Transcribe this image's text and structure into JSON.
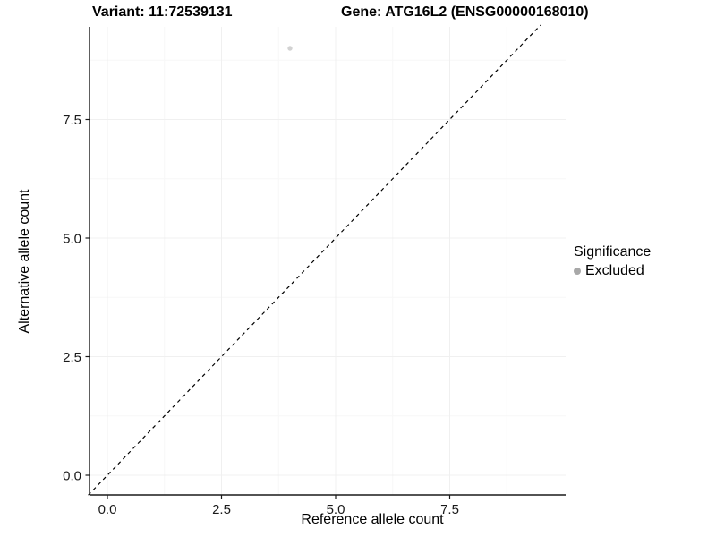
{
  "header": {
    "variant_title": "Variant: 11:72539131",
    "gene_title": "Gene: ATG16L2 (ENSG00000168010)"
  },
  "chart_data": {
    "type": "scatter",
    "xlabel": "Reference allele count",
    "ylabel": "Alternative allele count",
    "x_ticks": [
      0.0,
      2.5,
      5.0,
      7.5
    ],
    "y_ticks": [
      0.0,
      2.5,
      5.0,
      7.5
    ],
    "x_tick_labels": [
      "0.0",
      "2.5",
      "5.0",
      "7.5"
    ],
    "y_tick_labels": [
      "0.0",
      "2.5",
      "5.0",
      "7.5"
    ],
    "xlim": [
      -0.43,
      10.04
    ],
    "ylim": [
      -0.42,
      9.49
    ],
    "grid": {
      "major": true,
      "minor": true
    },
    "points": [
      {
        "x": 4,
        "y": 9,
        "series": "Excluded"
      }
    ],
    "reference_line": {
      "style": "dashed",
      "slope": 1,
      "intercept": 0
    },
    "legend": {
      "position": "right",
      "title": "Significance",
      "items": [
        {
          "label": "Excluded",
          "color": "#a8a8a8"
        }
      ]
    },
    "colors": {
      "point": "#d2d2d2",
      "axis_line": "#1a1a1a",
      "tick_text": "#1a1a1a",
      "grid_major": "#f0f0f0",
      "grid_minor": "#f7f7f7",
      "reference_line": "#000000",
      "background": "#ffffff"
    }
  }
}
